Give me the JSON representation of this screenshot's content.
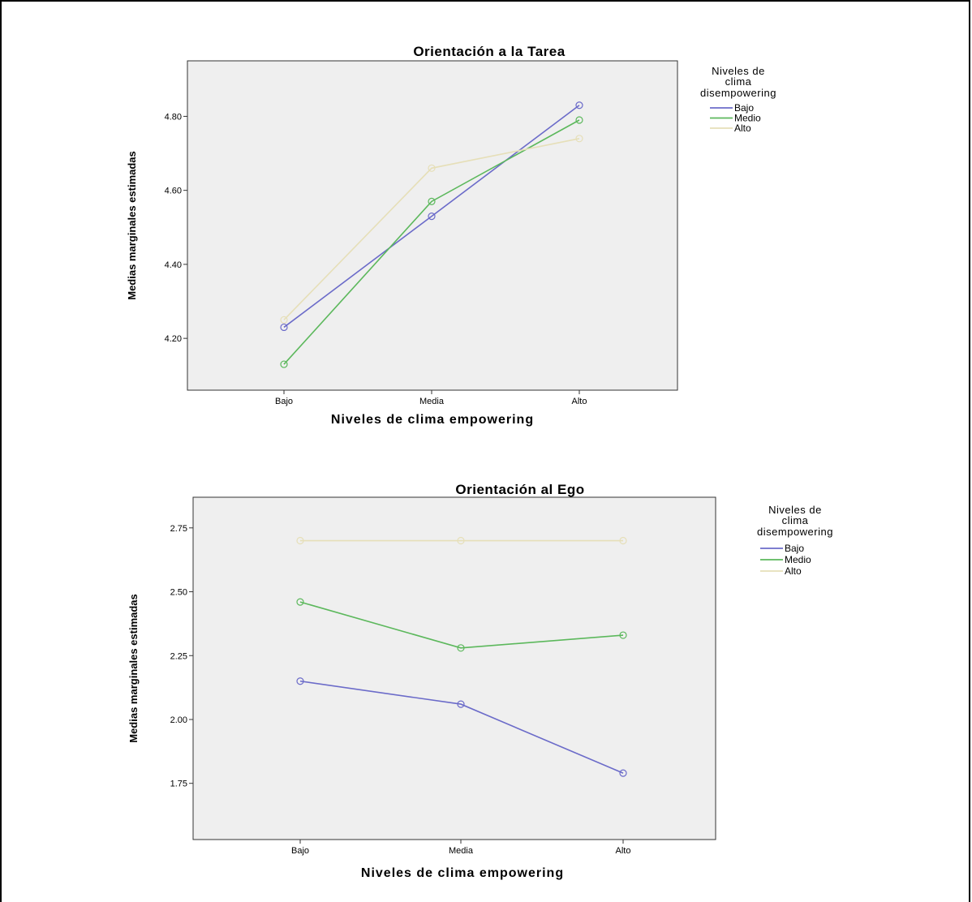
{
  "chart_data": [
    {
      "type": "line",
      "title": "Orientación a la Tarea",
      "xlabel": "Niveles de clima empowering",
      "ylabel": "Medias marginales estimadas",
      "categories": [
        "Bajo",
        "Media",
        "Alto"
      ],
      "yticks": [
        "4.20",
        "4.40",
        "4.60",
        "4.80"
      ],
      "ylim": [
        4.06,
        4.95
      ],
      "legend_title": [
        "Niveles de",
        "clima",
        "disempowering"
      ],
      "legend_position": "right",
      "grid": false,
      "series": [
        {
          "name": "Bajo",
          "values": [
            4.23,
            4.53,
            4.83
          ],
          "color": "#6b6bc9"
        },
        {
          "name": "Medio",
          "values": [
            4.13,
            4.57,
            4.79
          ],
          "color": "#5cb85c"
        },
        {
          "name": "Alto",
          "values": [
            4.25,
            4.66,
            4.74
          ],
          "color": "#e6dfb8"
        }
      ]
    },
    {
      "type": "line",
      "title": "Orientación al Ego",
      "xlabel": "Niveles de clima empowering",
      "ylabel": "Medias marginales estimadas",
      "categories": [
        "Bajo",
        "Media",
        "Alto"
      ],
      "yticks": [
        "1.75",
        "2.00",
        "2.25",
        "2.50",
        "2.75"
      ],
      "ylim": [
        1.53,
        2.87
      ],
      "legend_title": [
        "Niveles de",
        "clima",
        "disempowering"
      ],
      "legend_position": "right",
      "grid": false,
      "series": [
        {
          "name": "Bajo",
          "values": [
            2.15,
            2.06,
            1.79
          ],
          "color": "#6b6bc9"
        },
        {
          "name": "Medio",
          "values": [
            2.46,
            2.28,
            2.33
          ],
          "color": "#5cb85c"
        },
        {
          "name": "Alto",
          "values": [
            2.7,
            2.7,
            2.7
          ],
          "color": "#e6dfb8"
        }
      ]
    }
  ]
}
